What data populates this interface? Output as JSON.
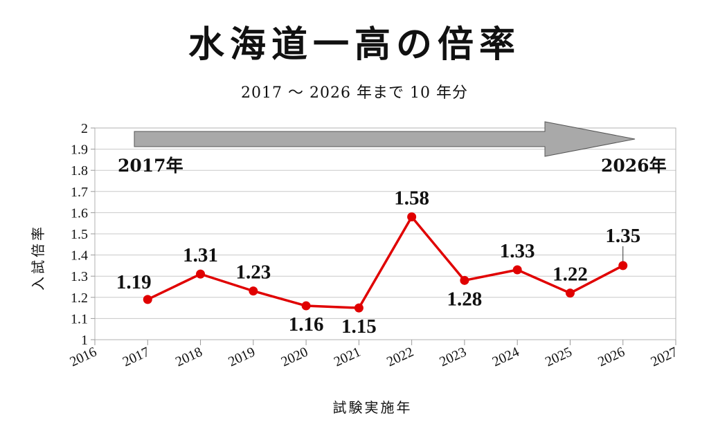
{
  "title": "水海道一高の倍率",
  "subtitle": "2017 ～ 2026 年まで 10 年分",
  "chart_data": {
    "type": "line",
    "title": "水海道一高の倍率",
    "subtitle": "2017 ～ 2026 年まで 10 年分",
    "xlabel": "試験実施年",
    "ylabel": "入試倍率",
    "xlim": [
      2016,
      2027
    ],
    "ylim": [
      1,
      2
    ],
    "x_ticks": [
      "2016",
      "2017",
      "2018",
      "2019",
      "2020",
      "2021",
      "2022",
      "2023",
      "2024",
      "2025",
      "2026",
      "2027"
    ],
    "y_ticks": [
      "1",
      "1.1",
      "1.2",
      "1.3",
      "1.4",
      "1.5",
      "1.6",
      "1.7",
      "1.8",
      "1.9",
      "2"
    ],
    "grid": true,
    "series": [
      {
        "color": "#e00000",
        "x": [
          2017,
          2018,
          2019,
          2020,
          2021,
          2022,
          2023,
          2024,
          2025,
          2026
        ],
        "values": [
          1.19,
          1.31,
          1.23,
          1.16,
          1.15,
          1.58,
          1.28,
          1.33,
          1.22,
          1.35
        ],
        "labels": [
          "1.19",
          "1.31",
          "1.23",
          "1.16",
          "1.15",
          "1.58",
          "1.28",
          "1.33",
          "1.22",
          "1.35"
        ]
      }
    ],
    "annotations": {
      "arrow_start_label": "2017年",
      "arrow_end_label": "2026年",
      "arrow_color": "#a9a9a9"
    }
  }
}
